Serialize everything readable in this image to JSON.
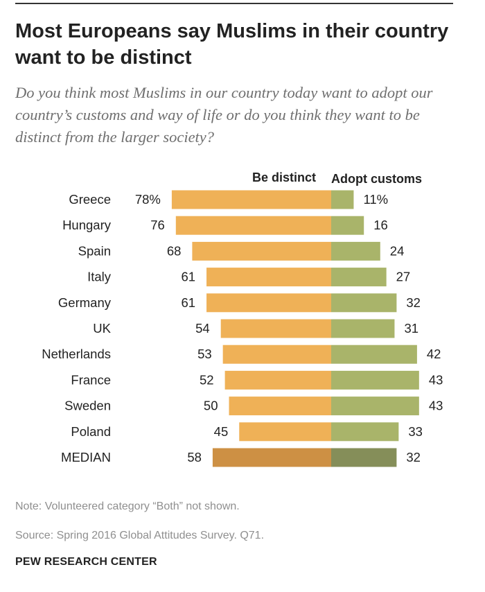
{
  "header": {
    "title": "Most Europeans say Muslims in their country want to be distinct",
    "subtitle": "Do you think most Muslims in our country today want to adopt our country’s customs and way of life or do you think they want to be distinct from the larger society?"
  },
  "chart_data": {
    "type": "bar",
    "orientation": "horizontal-diverging",
    "categories": [
      "Greece",
      "Hungary",
      "Spain",
      "Italy",
      "Germany",
      "UK",
      "Netherlands",
      "France",
      "Sweden",
      "Poland",
      "MEDIAN"
    ],
    "series": [
      {
        "name": "Be distinct",
        "values": [
          78,
          76,
          68,
          61,
          61,
          54,
          53,
          52,
          50,
          45,
          58
        ],
        "labels": [
          "78%",
          "76",
          "68",
          "61",
          "61",
          "54",
          "53",
          "52",
          "50",
          "45",
          "58"
        ],
        "color": "#efb157",
        "median_color": "#cd9044"
      },
      {
        "name": "Adopt customs",
        "values": [
          11,
          16,
          24,
          27,
          32,
          31,
          42,
          43,
          43,
          33,
          32
        ],
        "labels": [
          "11%",
          "16",
          "24",
          "27",
          "32",
          "31",
          "42",
          "43",
          "43",
          "33",
          "32"
        ],
        "color": "#a9b46a",
        "median_color": "#858e59"
      }
    ]
  },
  "footer": {
    "note": "Note: Volunteered category “Both” not shown.",
    "source": "Source: Spring 2016 Global Attitudes Survey. Q71.",
    "brand": "PEW RESEARCH CENTER"
  }
}
